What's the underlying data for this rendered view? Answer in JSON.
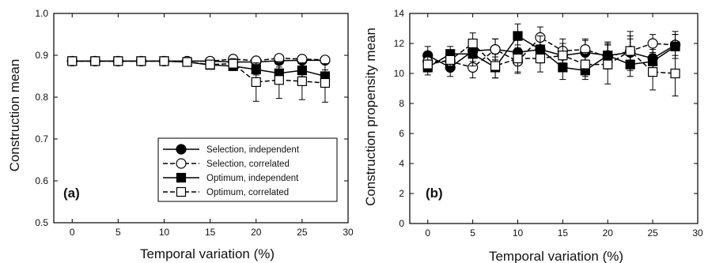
{
  "chart_data": [
    {
      "type": "line",
      "panel_label": "(a)",
      "xlabel": "Temporal variation (%)",
      "ylabel": "Construction mean",
      "xlim": [
        -2,
        30
      ],
      "ylim": [
        0.5,
        1.0
      ],
      "xticks": [
        "0",
        "5",
        "10",
        "15",
        "20",
        "25",
        "30"
      ],
      "yticks": [
        "0.5",
        "0.6",
        "0.7",
        "0.8",
        "0.9",
        "1.0"
      ],
      "legend_position": "bottom-right",
      "legend": [
        {
          "label": "Selection, independent"
        },
        {
          "label": "Selection, correlated"
        },
        {
          "label": "Optimum, independent"
        },
        {
          "label": "Optimum, correlated"
        }
      ],
      "x": [
        0,
        2.5,
        5,
        7.5,
        10,
        12.5,
        15,
        17.5,
        20,
        22.5,
        25,
        27.5
      ],
      "series": [
        {
          "name": "Selection, independent",
          "marker": "circle-filled",
          "dash": "solid",
          "values": [
            0.886,
            0.886,
            0.886,
            0.886,
            0.886,
            0.886,
            0.886,
            0.884,
            0.884,
            0.887,
            0.888,
            0.888
          ],
          "errors": [
            0.003,
            0.003,
            0.003,
            0.003,
            0.003,
            0.004,
            0.004,
            0.005,
            0.006,
            0.006,
            0.006,
            0.006
          ]
        },
        {
          "name": "Selection, correlated",
          "marker": "circle-open",
          "dash": "dashed",
          "values": [
            0.886,
            0.886,
            0.886,
            0.886,
            0.886,
            0.886,
            0.886,
            0.891,
            0.887,
            0.893,
            0.891,
            0.889
          ],
          "errors": [
            0.003,
            0.003,
            0.003,
            0.003,
            0.003,
            0.004,
            0.004,
            0.006,
            0.007,
            0.006,
            0.006,
            0.006
          ]
        },
        {
          "name": "Optimum, independent",
          "marker": "square-filled",
          "dash": "solid",
          "values": [
            0.886,
            0.886,
            0.886,
            0.886,
            0.886,
            0.884,
            0.877,
            0.874,
            0.866,
            0.857,
            0.864,
            0.85
          ],
          "errors": [
            0.003,
            0.003,
            0.003,
            0.003,
            0.004,
            0.005,
            0.007,
            0.01,
            0.013,
            0.015,
            0.015,
            0.015
          ]
        },
        {
          "name": "Optimum, correlated",
          "marker": "square-open",
          "dash": "dashed",
          "values": [
            0.886,
            0.886,
            0.886,
            0.886,
            0.886,
            0.884,
            0.878,
            0.88,
            0.836,
            0.841,
            0.838,
            0.834
          ],
          "errors": [
            0.003,
            0.003,
            0.003,
            0.003,
            0.004,
            0.005,
            0.008,
            0.012,
            0.046,
            0.044,
            0.044,
            0.046
          ]
        }
      ]
    },
    {
      "type": "line",
      "panel_label": "(b)",
      "xlabel": "Temporal variation (%)",
      "ylabel": "Construction propensity mean",
      "xlim": [
        -2,
        30
      ],
      "ylim": [
        0,
        14
      ],
      "xticks": [
        "0",
        "5",
        "10",
        "15",
        "20",
        "25",
        "30"
      ],
      "yticks": [
        "0",
        "2",
        "4",
        "6",
        "8",
        "10",
        "12",
        "14"
      ],
      "x": [
        0,
        2.5,
        5,
        7.5,
        10,
        12.5,
        15,
        17.5,
        20,
        22.5,
        25,
        27.5
      ],
      "series": [
        {
          "name": "Selection, independent",
          "marker": "circle-filled",
          "dash": "solid",
          "values": [
            11.2,
            10.4,
            11.5,
            11.6,
            11.4,
            11.6,
            11.2,
            11.4,
            11.2,
            11.4,
            11.0,
            11.9
          ],
          "errors": [
            0.6,
            0.6,
            0.7,
            0.7,
            0.8,
            0.8,
            0.8,
            0.8,
            0.8,
            0.9,
            0.9,
            0.9
          ]
        },
        {
          "name": "Selection, correlated",
          "marker": "circle-open",
          "dash": "dashed",
          "values": [
            10.8,
            10.8,
            10.4,
            11.6,
            10.8,
            12.4,
            11.5,
            11.6,
            11.1,
            11.5,
            12.0,
            11.9
          ],
          "errors": [
            0.6,
            0.6,
            0.7,
            0.7,
            0.8,
            0.7,
            0.8,
            0.7,
            0.8,
            1.0,
            0.6,
            0.7
          ]
        },
        {
          "name": "Optimum, independent",
          "marker": "square-filled",
          "dash": "solid",
          "values": [
            10.4,
            11.3,
            11.3,
            10.4,
            12.5,
            11.6,
            10.4,
            10.2,
            11.2,
            10.6,
            10.8,
            11.8
          ],
          "errors": [
            0.5,
            0.5,
            0.8,
            0.7,
            0.8,
            0.9,
            0.8,
            0.6,
            0.9,
            0.8,
            0.8,
            0.8
          ]
        },
        {
          "name": "Optimum, correlated",
          "marker": "square-open",
          "dash": "dashed",
          "values": [
            10.6,
            10.9,
            12.0,
            10.5,
            11.0,
            11.0,
            11.2,
            10.6,
            10.6,
            11.5,
            10.1,
            10.0
          ],
          "errors": [
            0.5,
            0.6,
            0.7,
            0.8,
            0.9,
            0.9,
            0.8,
            0.8,
            1.3,
            1.3,
            1.2,
            1.5
          ]
        }
      ]
    }
  ]
}
